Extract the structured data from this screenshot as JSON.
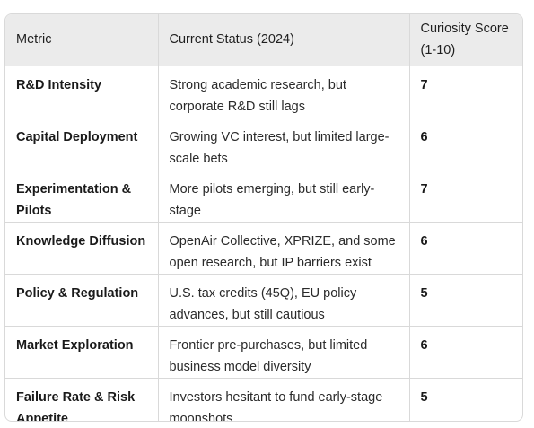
{
  "table": {
    "headers": [
      "Metric",
      "Current Status (2024)",
      "Curiosity Score (1-10)"
    ],
    "rows": [
      {
        "metric": "R&D Intensity",
        "status": "Strong academic research, but corporate R&D still lags",
        "score": "7"
      },
      {
        "metric": "Capital Deployment",
        "status": "Growing VC interest, but limited large-scale bets",
        "score": "6"
      },
      {
        "metric": "Experimentation & Pilots",
        "status": "More pilots emerging, but still early-stage",
        "score": "7"
      },
      {
        "metric": "Knowledge Diffusion",
        "status": "OpenAir Collective, XPRIZE, and some open research, but IP barriers exist",
        "score": "6"
      },
      {
        "metric": "Policy & Regulation",
        "status": "U.S. tax credits (45Q), EU policy advances, but still cautious",
        "score": "5"
      },
      {
        "metric": "Market Exploration",
        "status": "Frontier pre-purchases, but limited business model diversity",
        "score": "6"
      },
      {
        "metric": "Failure Rate & Risk Appetite",
        "status": "Investors hesitant to fund early-stage moonshots",
        "score": "5"
      }
    ]
  }
}
